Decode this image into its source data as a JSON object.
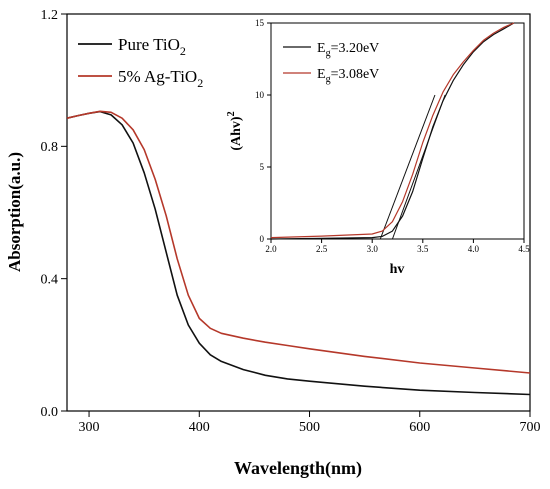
{
  "chart_data": [
    {
      "type": "line",
      "xlabel": "Wavelength(nm)",
      "ylabel": "Absorption(a.u.)",
      "xlim": [
        280,
        700
      ],
      "ylim": [
        0,
        1.2
      ],
      "x_ticks": [
        300,
        400,
        500,
        600,
        700
      ],
      "x_tick_labels": [
        "300",
        "400",
        "500",
        "600",
        "700"
      ],
      "y_ticks": [
        0.0,
        0.4,
        0.8,
        1.2
      ],
      "y_tick_labels": [
        "0.0",
        "0.4",
        "0.8",
        "1.2"
      ],
      "legend_position": "top-left",
      "series": [
        {
          "name_main": "Pure TiO",
          "name_sub": "2",
          "color": "#111111",
          "x": [
            280,
            290,
            300,
            310,
            320,
            330,
            340,
            350,
            360,
            370,
            380,
            390,
            400,
            410,
            420,
            440,
            460,
            480,
            500,
            550,
            600,
            650,
            700
          ],
          "y": [
            0.885,
            0.893,
            0.9,
            0.905,
            0.895,
            0.865,
            0.81,
            0.72,
            0.61,
            0.48,
            0.35,
            0.26,
            0.205,
            0.17,
            0.15,
            0.125,
            0.108,
            0.097,
            0.09,
            0.075,
            0.063,
            0.056,
            0.05
          ]
        },
        {
          "name_main": "5% Ag-TiO",
          "name_sub": "2",
          "color": "#b5382a",
          "x": [
            280,
            290,
            300,
            310,
            320,
            330,
            340,
            350,
            360,
            370,
            380,
            390,
            400,
            410,
            420,
            440,
            460,
            480,
            500,
            550,
            600,
            650,
            700
          ],
          "y": [
            0.885,
            0.893,
            0.9,
            0.906,
            0.903,
            0.885,
            0.85,
            0.79,
            0.7,
            0.59,
            0.46,
            0.35,
            0.28,
            0.25,
            0.235,
            0.22,
            0.208,
            0.198,
            0.188,
            0.165,
            0.145,
            0.13,
            0.115
          ]
        }
      ]
    },
    {
      "type": "line",
      "xlabel": "hv",
      "ylabel_main": "(Ahv)",
      "ylabel_sup": "2",
      "xlim": [
        2.0,
        4.5
      ],
      "ylim": [
        0,
        15
      ],
      "x_ticks": [
        2.0,
        2.5,
        3.0,
        3.5,
        4.0,
        4.5
      ],
      "x_tick_labels": [
        "2.0",
        "2.5",
        "3.0",
        "3.5",
        "4.0",
        "4.5"
      ],
      "y_ticks": [
        0,
        5,
        10,
        15
      ],
      "y_tick_labels": [
        "0",
        "5",
        "10",
        "15"
      ],
      "legend_position": "top-left",
      "series": [
        {
          "name_main": "E",
          "name_sub": "g",
          "name_rest": "=3.20eV",
          "color": "#111111",
          "x": [
            2.0,
            2.5,
            3.0,
            3.1,
            3.2,
            3.3,
            3.4,
            3.5,
            3.6,
            3.7,
            3.8,
            3.9,
            4.0,
            4.1,
            4.2,
            4.3,
            4.4
          ],
          "y": [
            0.0,
            0.05,
            0.1,
            0.18,
            0.55,
            1.6,
            3.3,
            5.6,
            7.8,
            9.6,
            11.0,
            12.1,
            13.0,
            13.7,
            14.2,
            14.6,
            15.0
          ]
        },
        {
          "name_main": "E",
          "name_sub": "g",
          "name_rest": "=3.08eV",
          "color": "#b5382a",
          "x": [
            2.0,
            2.5,
            3.0,
            3.1,
            3.2,
            3.3,
            3.4,
            3.5,
            3.6,
            3.7,
            3.8,
            3.9,
            4.0,
            4.1,
            4.2,
            4.3,
            4.4
          ],
          "y": [
            0.1,
            0.2,
            0.35,
            0.55,
            1.2,
            2.6,
            4.5,
            6.7,
            8.6,
            10.2,
            11.4,
            12.3,
            13.1,
            13.8,
            14.3,
            14.7,
            15.0
          ]
        }
      ],
      "tangent_lines": [
        {
          "x": [
            3.2,
            3.72
          ],
          "y": [
            0,
            10.0
          ],
          "color": "#111111"
        },
        {
          "x": [
            3.08,
            3.62
          ],
          "y": [
            0,
            10.0
          ],
          "color": "#111111"
        }
      ]
    }
  ]
}
